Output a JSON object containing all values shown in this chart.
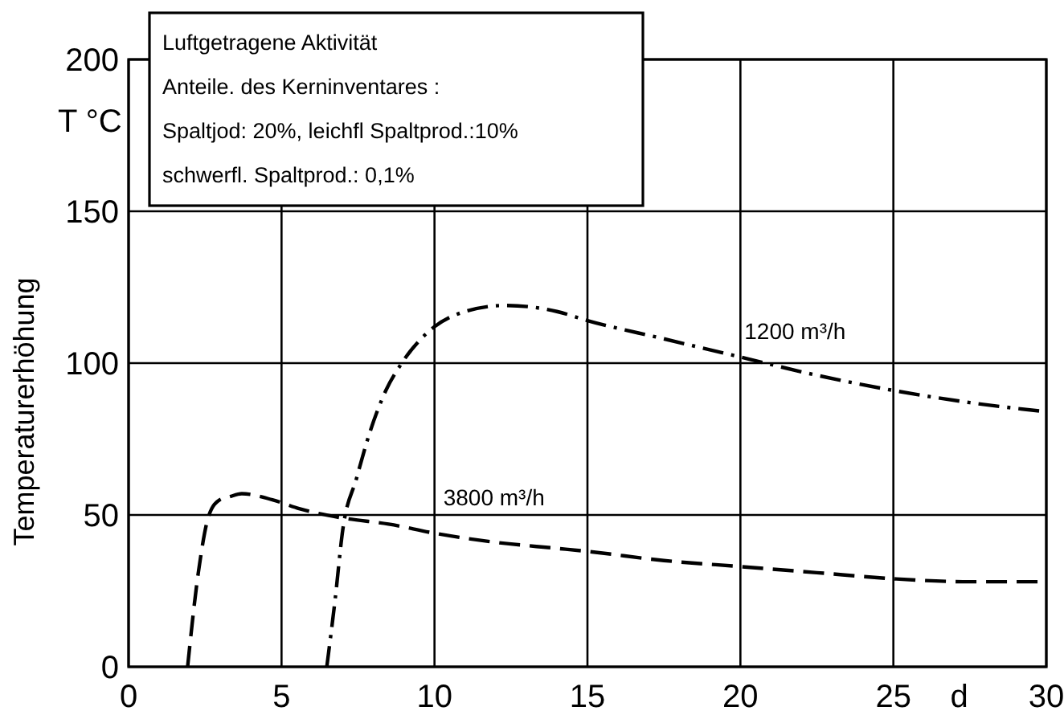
{
  "chart_data": {
    "type": "line",
    "xlabel": "d",
    "ylabel": "Temperaturerhöhung",
    "annotations": [
      "T °C",
      "Luftgetragene Aktivität",
      "Anteile. des Kerninventares :",
      "Spaltjod: 20%, leichfl Spaltprod.:10%",
      "schwerfl. Spaltprod.: 0,1%"
    ],
    "xlim": [
      0,
      30
    ],
    "xticks": [
      0,
      5,
      10,
      15,
      20,
      25,
      30
    ],
    "ylim": [
      0,
      200
    ],
    "yticks": [
      0,
      50,
      100,
      150,
      200
    ],
    "grid": true,
    "series": [
      {
        "name": "3800 m³/h",
        "color": "#000000",
        "line_style": "dashed",
        "x": [
          1.93,
          2.28,
          2.63,
          2.98,
          3.3,
          3.7,
          4.7,
          5.6,
          7.0,
          8.5,
          10,
          12,
          14,
          15,
          17.5,
          20,
          22.5,
          25,
          27.5,
          30
        ],
        "values": [
          0,
          31,
          50,
          55,
          56,
          57,
          55,
          52,
          49,
          47,
          44,
          41,
          39,
          38,
          35,
          33,
          31,
          29,
          28,
          28
        ]
      },
      {
        "name": "1200 m³/h",
        "color": "#000000",
        "line_style": "dashdot",
        "x": [
          6.48,
          6.75,
          7.0,
          7.45,
          7.88,
          8.41,
          8.93,
          10,
          11,
          12.3,
          14,
          15,
          17.5,
          20,
          22.5,
          25,
          27.5,
          30
        ],
        "values": [
          0,
          22,
          45,
          62,
          77,
          91,
          100,
          112,
          117,
          119,
          117,
          114,
          108,
          102,
          96,
          91,
          87,
          84
        ]
      }
    ]
  }
}
